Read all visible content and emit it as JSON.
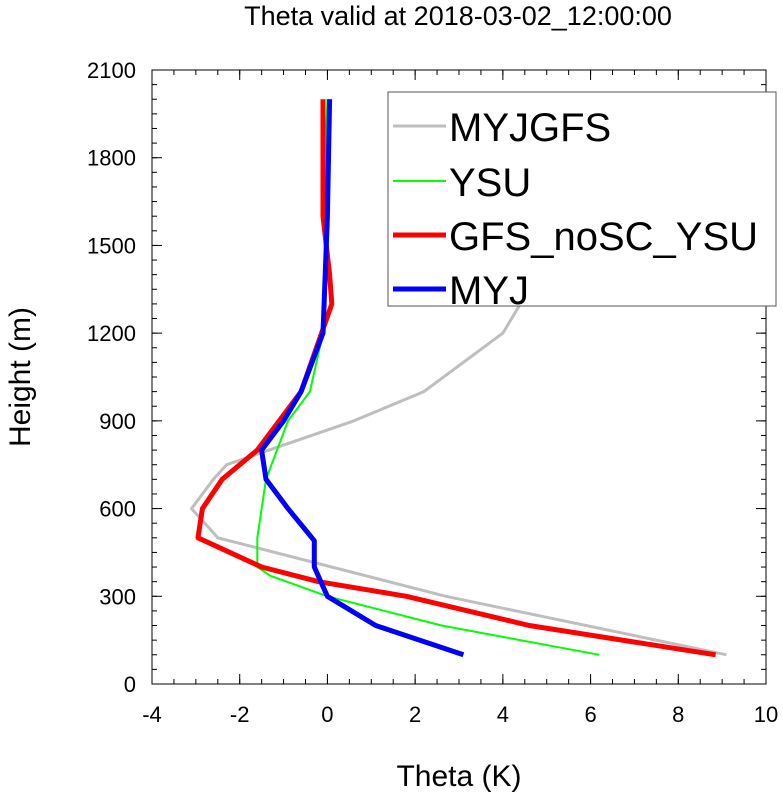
{
  "chart_data": {
    "type": "line",
    "title": "Theta valid at 2018-03-02_12:00:00",
    "xlabel": "Theta (K)",
    "ylabel": "Height (m)",
    "xlim": [
      -4,
      10
    ],
    "ylim": [
      0,
      2100
    ],
    "xticks": [
      "-4",
      "-2",
      "0",
      "2",
      "4",
      "6",
      "8",
      "10"
    ],
    "yticks": [
      "0",
      "300",
      "600",
      "900",
      "1200",
      "1500",
      "1800",
      "2100"
    ],
    "xtick_values": [
      -4,
      -2,
      0,
      2,
      4,
      6,
      8,
      10
    ],
    "ytick_values": [
      0,
      300,
      600,
      900,
      1200,
      1500,
      1800,
      2100
    ],
    "grid": false,
    "legend_position": "top-right",
    "series": [
      {
        "name": "MYJGFS",
        "color": "#bebebe",
        "x": [
          9.1,
          2.7,
          -2.5,
          -3.1,
          -2.6,
          -2.3,
          0.6,
          2.2,
          4.0,
          4.4,
          4.1,
          3.6,
          2.7,
          1.8
        ],
        "y": [
          100,
          300,
          500,
          600,
          700,
          750,
          900,
          1000,
          1200,
          1300,
          1500,
          1700,
          1900,
          2000
        ]
      },
      {
        "name": "YSU",
        "color": "#00ff00",
        "x": [
          6.2,
          2.6,
          0.0,
          -1.3,
          -1.6,
          -1.6,
          -1.4,
          -0.9,
          -0.4,
          -0.1,
          0.0,
          -0.05,
          0.0
        ],
        "y": [
          100,
          200,
          300,
          370,
          400,
          500,
          700,
          900,
          1000,
          1200,
          1500,
          1800,
          2000
        ]
      },
      {
        "name": "GFS_noSC_YSU",
        "color": "#ff0000",
        "x": [
          8.85,
          4.6,
          1.8,
          -0.2,
          -1.5,
          -2.95,
          -2.85,
          -2.4,
          -1.6,
          -0.6,
          0.1,
          0.05,
          -0.1,
          -0.1
        ],
        "y": [
          100,
          200,
          300,
          350,
          400,
          500,
          600,
          700,
          800,
          1000,
          1300,
          1400,
          1600,
          2000
        ]
      },
      {
        "name": "MYJ",
        "color": "#0000ff",
        "x": [
          3.1,
          1.1,
          0.0,
          -0.3,
          -0.3,
          -0.9,
          -1.4,
          -1.5,
          -1.0,
          -0.6,
          -0.1,
          0.0,
          0.05
        ],
        "y": [
          100,
          200,
          300,
          400,
          490,
          600,
          700,
          800,
          900,
          1000,
          1200,
          1600,
          2000
        ]
      }
    ]
  }
}
